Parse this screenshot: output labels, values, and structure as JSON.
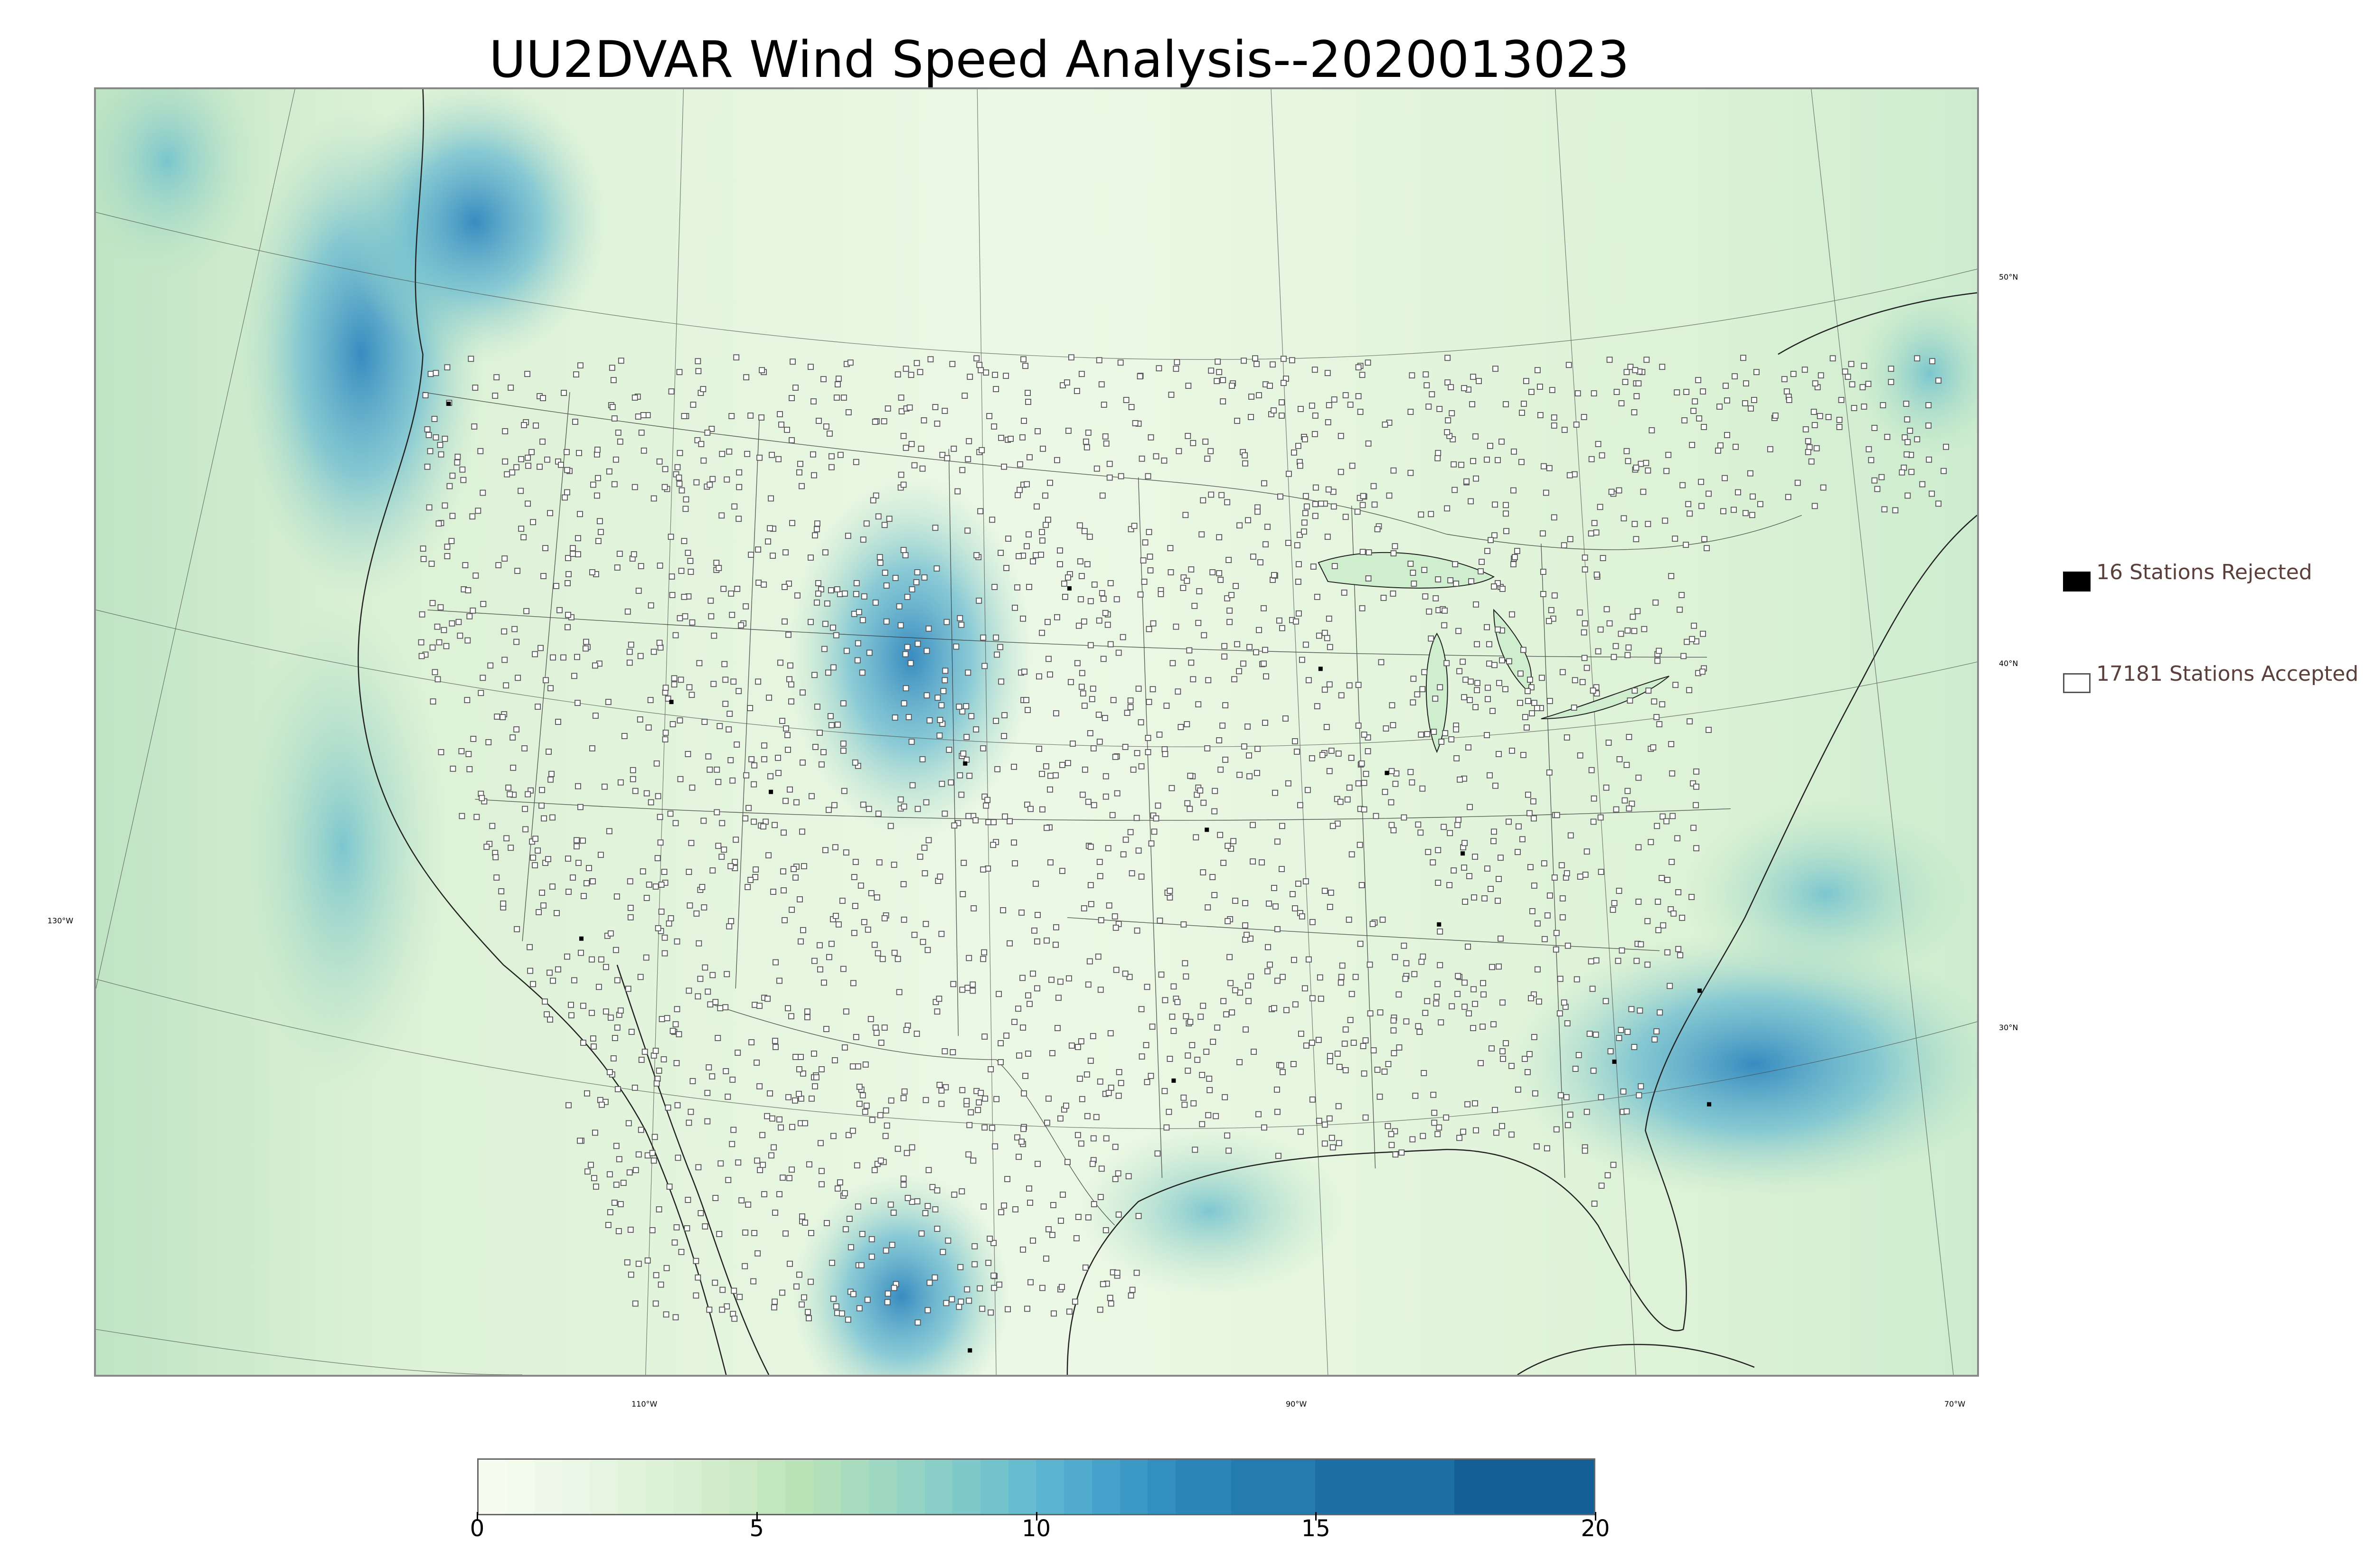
{
  "title": "UU2DVAR Wind Speed Analysis--2020013023",
  "legend": {
    "rejected": "16 Stations Rejected",
    "accepted": "17181 Stations Accepted",
    "rejected_color": "#000000",
    "accepted_color": "#ffffff"
  },
  "axes": {
    "lon_labels": [
      "130°W",
      "110°W",
      "90°W",
      "70°W"
    ],
    "lat_labels": [
      "50°N",
      "40°N",
      "30°N"
    ]
  },
  "colorbar": {
    "ticks": [
      "0",
      "5",
      "10",
      "15",
      "20"
    ],
    "range": [
      0,
      20
    ],
    "boundaries": [
      0,
      0.5,
      1,
      1.5,
      2,
      2.5,
      3,
      3.5,
      4,
      4.5,
      5,
      5.5,
      6,
      6.5,
      7,
      7.5,
      8,
      8.5,
      9,
      9.5,
      10,
      10.5,
      11,
      11.5,
      12,
      12.5,
      13.5,
      15,
      17.5,
      20
    ],
    "colors": [
      "#f7fcf0",
      "#f3fbed",
      "#eff9ea",
      "#ebf7e6",
      "#e6f5e1",
      "#e2f3dc",
      "#ddf1d6",
      "#d8efd1",
      "#d1ecca",
      "#cae9c4",
      "#c2e6be",
      "#bae3b8",
      "#b2e0bb",
      "#a9dcbe",
      "#9fd8c2",
      "#95d3c5",
      "#8acec8",
      "#7fc9cb",
      "#73c3cd",
      "#67bccf",
      "#5bb4d0",
      "#50abcf",
      "#46a2cb",
      "#3c99c6",
      "#338fc0",
      "#2b85b9",
      "#237bb0",
      "#1c6fa4",
      "#155f97"
    ]
  },
  "map": {
    "ocean_color": "#cdebcf",
    "land_color": "#e3f4dc",
    "high_wind_color": "#3a8ec4"
  }
}
